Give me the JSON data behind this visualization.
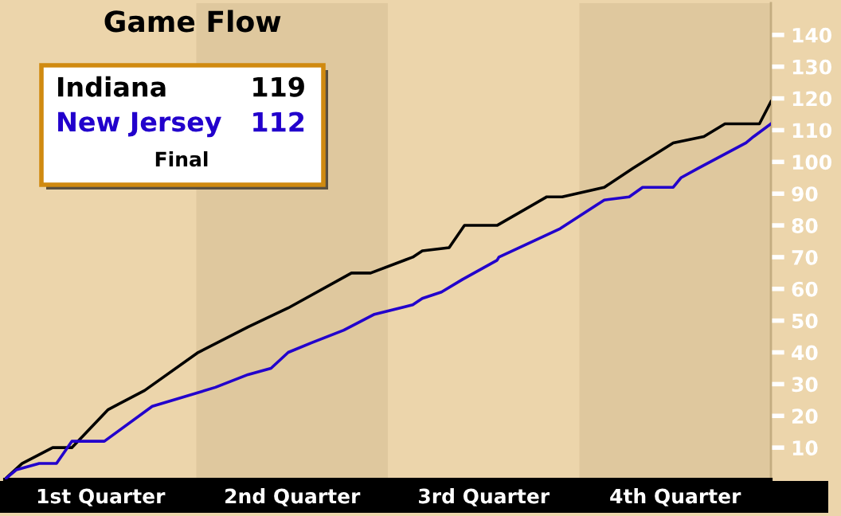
{
  "chart_data": {
    "type": "line",
    "title": "Game Flow",
    "series": [
      {
        "name": "Indiana",
        "color": "#000000",
        "x": [
          0.5,
          0.59,
          0.75,
          0.85,
          1.04,
          1.23,
          1.51,
          1.77,
          1.98,
          2.31,
          2.41,
          2.63,
          2.68,
          2.82,
          2.9,
          3.07,
          3.33,
          3.41,
          3.63,
          3.78,
          3.99,
          4.15,
          4.26,
          4.44,
          4.5
        ],
        "values": [
          0,
          5,
          10,
          10,
          22,
          28,
          40,
          48,
          54,
          65,
          65,
          70,
          72,
          73,
          80,
          80,
          89,
          89,
          92,
          98,
          106,
          108,
          112,
          112,
          119
        ]
      },
      {
        "name": "New Jersey",
        "color": "#2200cc",
        "x": [
          0.5,
          0.56,
          0.68,
          0.77,
          0.85,
          1.02,
          1.27,
          1.6,
          1.77,
          1.89,
          1.98,
          2.1,
          2.27,
          2.43,
          2.63,
          2.68,
          2.78,
          2.89,
          3.07,
          3.08,
          3.4,
          3.63,
          3.76,
          3.83,
          3.99,
          4.03,
          4.12,
          4.37,
          4.41,
          4.5
        ],
        "values": [
          0,
          3,
          5,
          5,
          12,
          12,
          23,
          29,
          33,
          35,
          40,
          43,
          47,
          52,
          55,
          57,
          59,
          63,
          69,
          70,
          79,
          88,
          89,
          92,
          92,
          95,
          98,
          106,
          108,
          112
        ]
      }
    ],
    "xlim": [
      0.5,
      4.5
    ],
    "xticks": [
      {
        "value": 1,
        "label": "1st Quarter"
      },
      {
        "value": 2,
        "label": "2nd Quarter"
      },
      {
        "value": 3,
        "label": "3rd Quarter"
      },
      {
        "value": 4,
        "label": "4th Quarter"
      }
    ],
    "ylim": [
      0,
      150
    ],
    "yticks": [
      10,
      20,
      30,
      40,
      50,
      60,
      70,
      80,
      90,
      100,
      110,
      120,
      130,
      140
    ],
    "annotations": [
      "119",
      "112",
      "Final"
    ],
    "grid": false
  }
}
